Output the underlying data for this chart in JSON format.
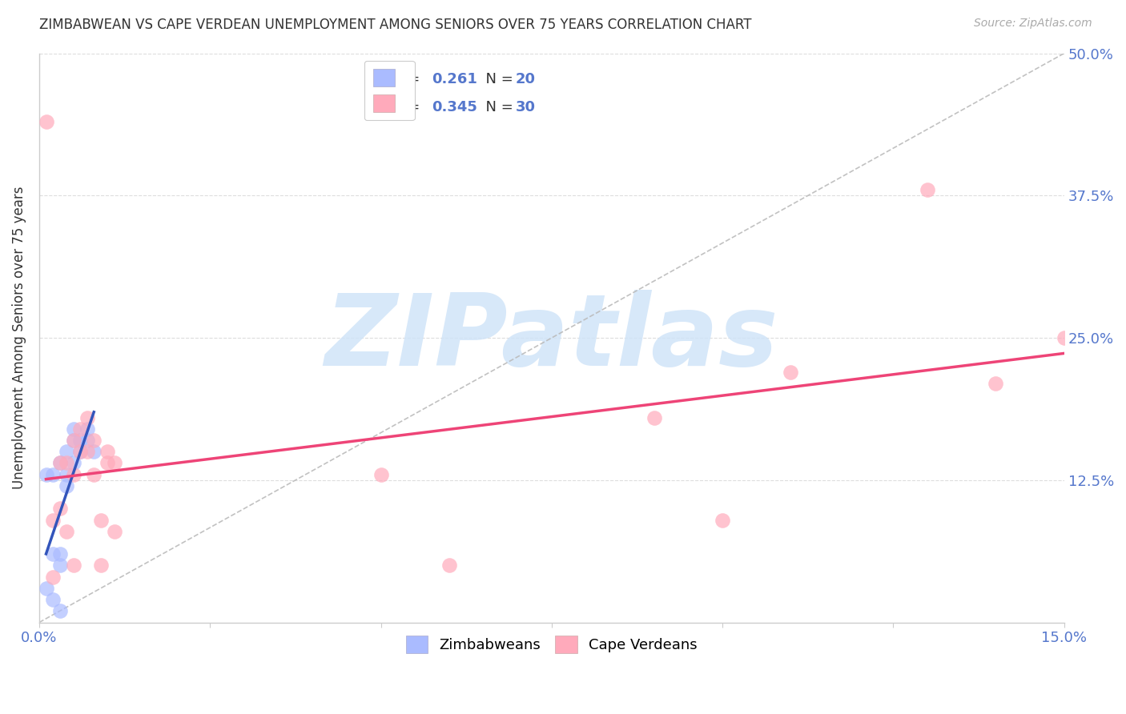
{
  "title": "ZIMBABWEAN VS CAPE VERDEAN UNEMPLOYMENT AMONG SENIORS OVER 75 YEARS CORRELATION CHART",
  "source": "Source: ZipAtlas.com",
  "ylabel": "Unemployment Among Seniors over 75 years",
  "xlim": [
    0.0,
    0.15
  ],
  "ylim": [
    0.0,
    0.5
  ],
  "ytick_vals": [
    0.0,
    0.125,
    0.25,
    0.375,
    0.5
  ],
  "ytick_labels": [
    "",
    "12.5%",
    "25.0%",
    "37.5%",
    "50.0%"
  ],
  "xtick_vals": [
    0.0,
    0.025,
    0.05,
    0.075,
    0.1,
    0.125,
    0.15
  ],
  "xtick_labels": [
    "0.0%",
    "",
    "",
    "",
    "",
    "",
    "15.0%"
  ],
  "zimbabwean_R": 0.261,
  "zimbabwean_N": 20,
  "capeverdean_R": 0.345,
  "capeverdean_N": 30,
  "blue_scatter": "#aabbff",
  "pink_scatter": "#ffaabb",
  "blue_line": "#3355bb",
  "pink_line": "#ee4477",
  "diagonal_color": "#bbbbbb",
  "grid_color": "#dddddd",
  "label_color": "#5577cc",
  "text_color": "#333333",
  "source_color": "#aaaaaa",
  "watermark_text": "ZIPatlas",
  "watermark_color": "#d0e4f8",
  "zim_x": [
    0.001,
    0.001,
    0.002,
    0.002,
    0.002,
    0.003,
    0.003,
    0.003,
    0.003,
    0.004,
    0.004,
    0.004,
    0.005,
    0.005,
    0.005,
    0.006,
    0.006,
    0.007,
    0.007,
    0.008
  ],
  "zim_y": [
    0.03,
    0.13,
    0.02,
    0.06,
    0.13,
    0.01,
    0.05,
    0.06,
    0.14,
    0.12,
    0.13,
    0.15,
    0.14,
    0.16,
    0.17,
    0.15,
    0.16,
    0.16,
    0.17,
    0.15
  ],
  "cv_x": [
    0.001,
    0.002,
    0.002,
    0.003,
    0.003,
    0.004,
    0.004,
    0.005,
    0.005,
    0.005,
    0.006,
    0.006,
    0.007,
    0.007,
    0.008,
    0.008,
    0.009,
    0.009,
    0.01,
    0.01,
    0.011,
    0.011,
    0.05,
    0.06,
    0.09,
    0.1,
    0.11,
    0.13,
    0.14,
    0.15
  ],
  "cv_y": [
    0.44,
    0.04,
    0.09,
    0.1,
    0.14,
    0.08,
    0.14,
    0.05,
    0.13,
    0.16,
    0.15,
    0.17,
    0.15,
    0.18,
    0.13,
    0.16,
    0.05,
    0.09,
    0.14,
    0.15,
    0.14,
    0.08,
    0.13,
    0.05,
    0.18,
    0.09,
    0.22,
    0.38,
    0.21,
    0.25
  ]
}
